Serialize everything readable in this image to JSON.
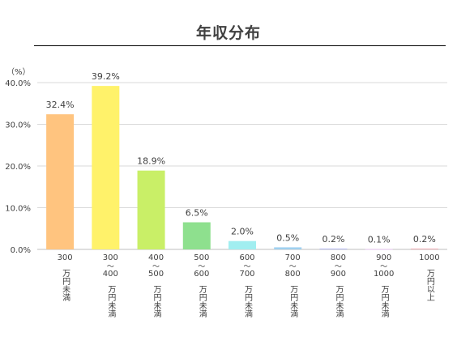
{
  "chart_data": {
    "type": "bar",
    "title": "年収分布",
    "unit_label": "（%）",
    "ylim": [
      0,
      40
    ],
    "yticks": [
      "0.0%",
      "10.0%",
      "20.0%",
      "30.0%",
      "40.0%"
    ],
    "ytick_values": [
      0,
      10,
      20,
      30,
      40
    ],
    "grid": true,
    "categories": [
      [
        "300",
        "万円未満"
      ],
      [
        "300",
        "～",
        "400",
        "万円未満"
      ],
      [
        "400",
        "～",
        "500",
        "万円未満"
      ],
      [
        "500",
        "～",
        "600",
        "万円未満"
      ],
      [
        "600",
        "～",
        "700",
        "万円未満"
      ],
      [
        "700",
        "～",
        "800",
        "万円未満"
      ],
      [
        "800",
        "～",
        "900",
        "万円未満"
      ],
      [
        "900",
        "～",
        "1000",
        "万円未満"
      ],
      [
        "1000",
        "万円以上"
      ]
    ],
    "values": [
      32.4,
      39.2,
      18.9,
      6.5,
      2.0,
      0.5,
      0.2,
      0.1,
      0.2
    ],
    "data_labels": [
      "32.4%",
      "39.2%",
      "18.9%",
      "6.5%",
      "2.0%",
      "0.5%",
      "0.2%",
      "0.1%",
      "0.2%"
    ],
    "colors": [
      "#ffc47f",
      "#fff26a",
      "#c9ef67",
      "#8ee08e",
      "#a1eef0",
      "#9fd0ef",
      "#b4b8f0",
      "#e1c0ea",
      "#f0aeb4"
    ]
  }
}
